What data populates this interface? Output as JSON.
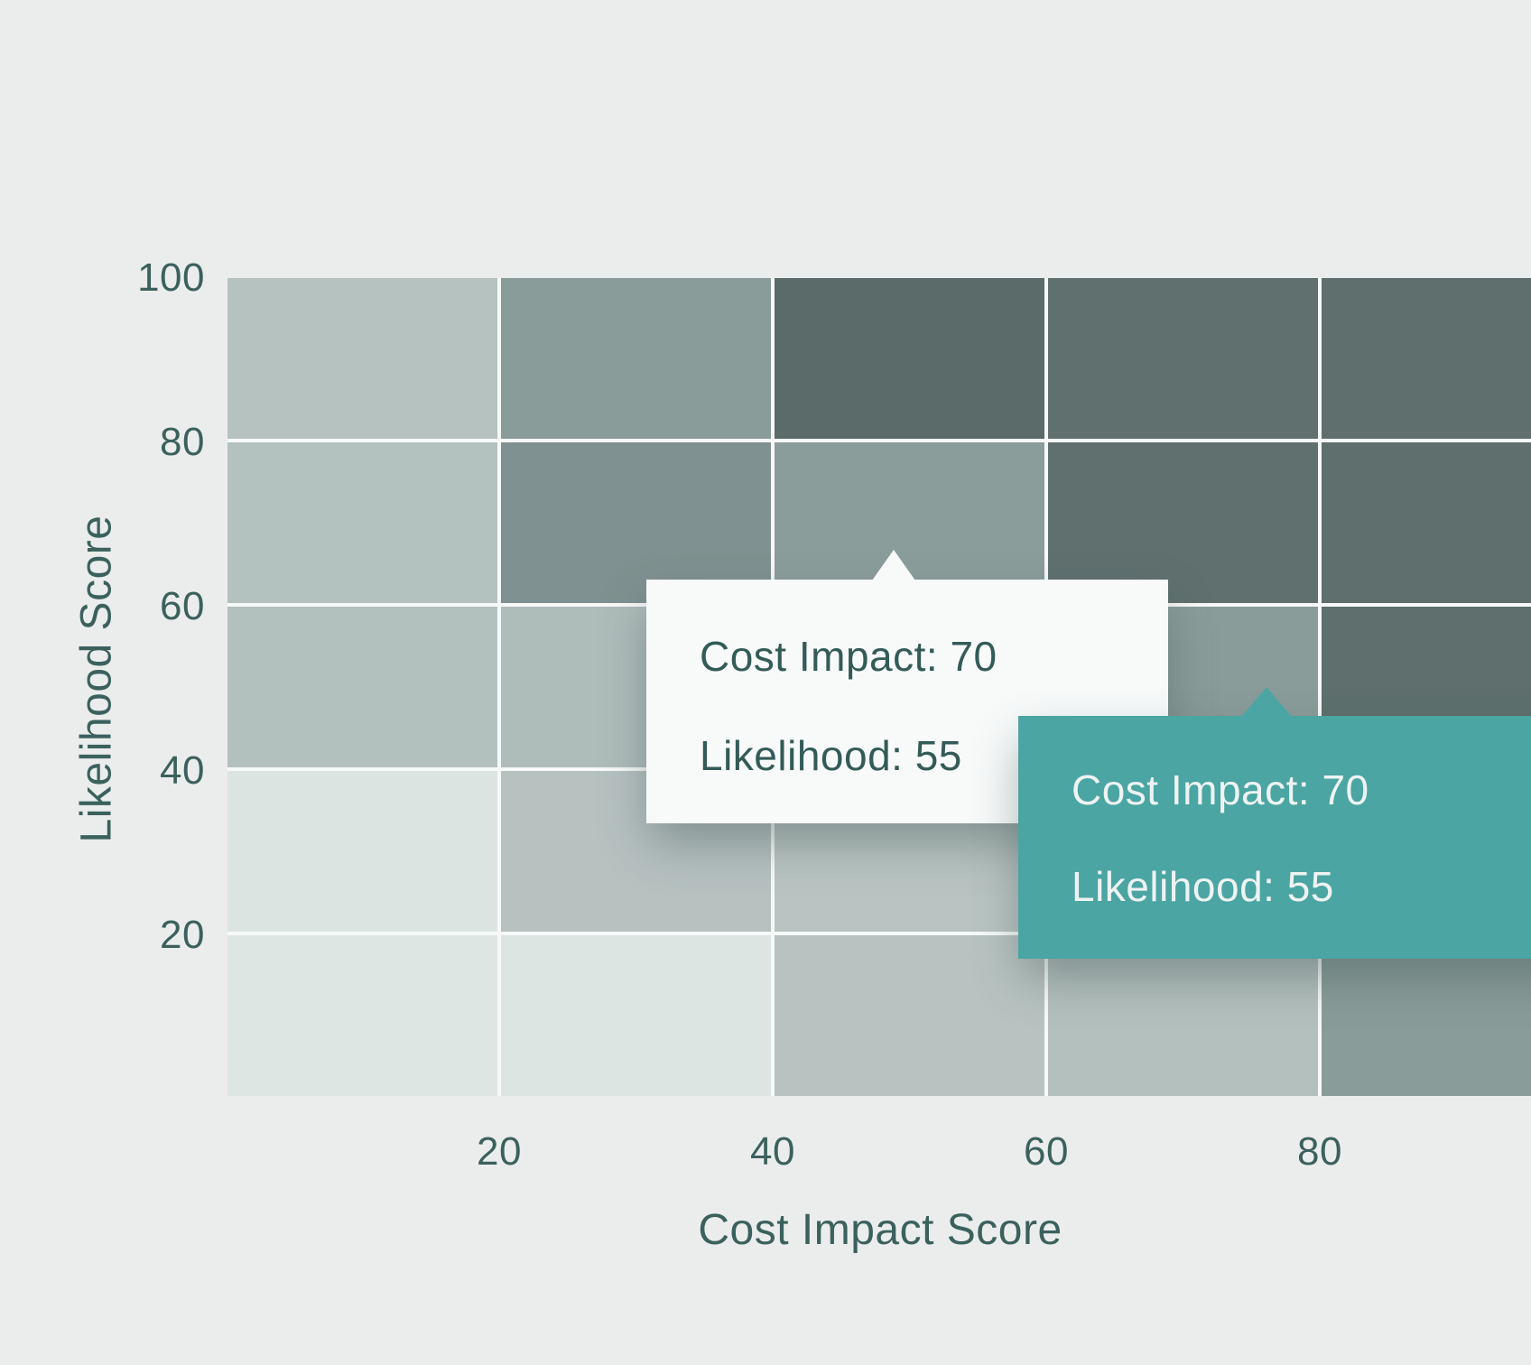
{
  "chart_data": {
    "type": "heatmap",
    "title": "",
    "xlabel": "Cost Impact Score",
    "ylabel": "Likelihood Score",
    "x_ticks": [
      "20",
      "40",
      "60",
      "80"
    ],
    "y_ticks": [
      "100",
      "80",
      "60",
      "40",
      "20"
    ],
    "x_range": [
      0,
      100
    ],
    "y_range": [
      0,
      100
    ],
    "x_bins": [
      [
        0,
        20
      ],
      [
        20,
        40
      ],
      [
        40,
        60
      ],
      [
        60,
        80
      ],
      [
        80,
        100
      ]
    ],
    "y_bins_top_to_bottom": [
      [
        80,
        100
      ],
      [
        60,
        80
      ],
      [
        40,
        60
      ],
      [
        20,
        40
      ],
      [
        0,
        20
      ]
    ],
    "grid": "white gridlines between cells, no outer border",
    "legend": "none",
    "cell_colors_by_row_top_to_bottom": [
      [
        "#b5c2c0",
        "#8a9c9a",
        "#5a6b69",
        "#5f706e",
        "#5e6f6d"
      ],
      [
        "#b3c1bf",
        "#7f9190",
        "#8b9d9b",
        "#5f706f",
        "#5e6f6d"
      ],
      [
        "#b2c0be",
        "#aebcba",
        "#8b9d9c",
        "#8a9c9a",
        "#5e6f6d"
      ],
      [
        "#dce4e2",
        "#b6c1c0",
        "#b9c4c2",
        "#8a9c9a",
        "#708381"
      ],
      [
        "#dee6e4",
        "#dde5e3",
        "#b8c3c1",
        "#b4c0be",
        "#8a9c99"
      ]
    ],
    "hovered_cell": {
      "cost_impact": 70,
      "likelihood": 55
    }
  },
  "tooltips": {
    "light": {
      "style": "light",
      "line1": "Cost Impact: 70",
      "line2": "Likelihood: 55",
      "bg_color": "#f8fafa",
      "text_color": "#335b57"
    },
    "teal": {
      "style": "teal",
      "line1": "Cost Impact: 70",
      "line2": "Likelihood: 55",
      "bg_color": "#4aa5a3",
      "text_color": "#eef3f2"
    }
  },
  "colors": {
    "background": "#ebedec",
    "gridline": "#f7f9f8",
    "axis_text": "#3b615d",
    "accent_teal": "#4aa5a3"
  }
}
